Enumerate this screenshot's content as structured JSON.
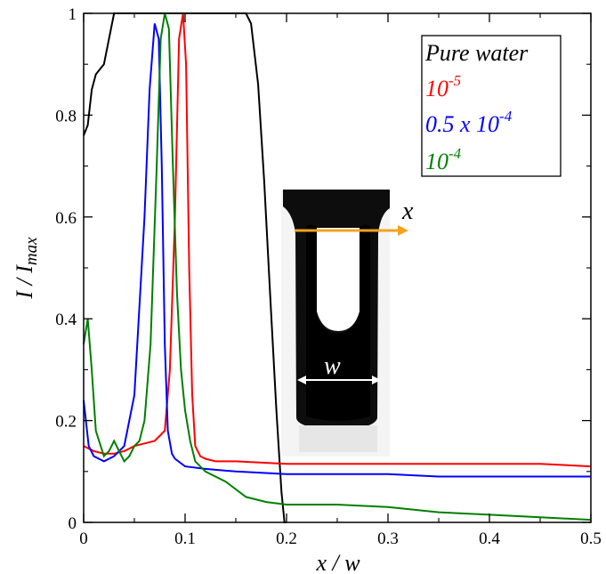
{
  "chart_data": {
    "type": "line",
    "xlabel": "x / w",
    "ylabel_main": "I / I",
    "ylabel_sub": "max",
    "xlim": [
      0,
      0.5
    ],
    "ylim": [
      0,
      1
    ],
    "x_ticks": [
      "0",
      "0.1",
      "0.2",
      "0.3",
      "0.4",
      "0.5"
    ],
    "y_ticks": [
      "0",
      "0.2",
      "0.4",
      "0.6",
      "0.8",
      "1"
    ],
    "grid": false,
    "legend_position": "top-right",
    "legend": [
      {
        "text": "Pure water",
        "base": "Pure water",
        "exp": "",
        "color": "#000000"
      },
      {
        "text": "10-5",
        "base": "10",
        "exp": "-5",
        "color": "#ff0000"
      },
      {
        "text": "0.5 x 10-4",
        "base": "0.5 x 10",
        "exp": "-4",
        "color": "#0000ff"
      },
      {
        "text": "10-4",
        "base": "10",
        "exp": "-4",
        "color": "#008000"
      }
    ],
    "series": [
      {
        "name": "Pure water",
        "color": "#000000",
        "x": [
          0,
          0.004,
          0.008,
          0.012,
          0.016,
          0.02,
          0.025,
          0.03,
          0.035,
          0.16,
          0.165,
          0.172,
          0.178,
          0.184,
          0.19,
          0.195,
          0.198,
          0.2
        ],
        "y": [
          0.76,
          0.78,
          0.85,
          0.88,
          0.89,
          0.9,
          0.95,
          1.0,
          1.0,
          1.0,
          0.98,
          0.86,
          0.67,
          0.44,
          0.22,
          0.06,
          0.0,
          0.0
        ]
      },
      {
        "name": "10-5",
        "color": "#ff0000",
        "x": [
          0,
          0.01,
          0.02,
          0.03,
          0.04,
          0.05,
          0.06,
          0.07,
          0.08,
          0.085,
          0.09,
          0.094,
          0.098,
          0.101,
          0.104,
          0.107,
          0.11,
          0.115,
          0.12,
          0.13,
          0.15,
          0.2,
          0.25,
          0.3,
          0.35,
          0.4,
          0.45,
          0.5
        ],
        "y": [
          0.15,
          0.14,
          0.135,
          0.135,
          0.14,
          0.15,
          0.155,
          0.16,
          0.18,
          0.3,
          0.6,
          0.95,
          1.0,
          0.9,
          0.5,
          0.25,
          0.15,
          0.13,
          0.125,
          0.12,
          0.12,
          0.115,
          0.115,
          0.115,
          0.115,
          0.115,
          0.115,
          0.11
        ]
      },
      {
        "name": "0.5 x 10-4",
        "color": "#0000ff",
        "x": [
          0,
          0.005,
          0.01,
          0.02,
          0.03,
          0.04,
          0.05,
          0.06,
          0.065,
          0.07,
          0.074,
          0.077,
          0.08,
          0.083,
          0.087,
          0.09,
          0.1,
          0.12,
          0.15,
          0.2,
          0.25,
          0.3,
          0.35,
          0.4,
          0.45,
          0.5
        ],
        "y": [
          0.24,
          0.15,
          0.13,
          0.12,
          0.13,
          0.15,
          0.25,
          0.6,
          0.85,
          0.98,
          0.95,
          0.7,
          0.35,
          0.18,
          0.135,
          0.125,
          0.11,
          0.105,
          0.1,
          0.095,
          0.095,
          0.095,
          0.09,
          0.09,
          0.09,
          0.09
        ]
      },
      {
        "name": "10-4",
        "color": "#008000",
        "x": [
          0,
          0.004,
          0.008,
          0.012,
          0.02,
          0.025,
          0.03,
          0.035,
          0.04,
          0.045,
          0.05,
          0.055,
          0.06,
          0.066,
          0.072,
          0.076,
          0.08,
          0.084,
          0.088,
          0.092,
          0.096,
          0.1,
          0.105,
          0.11,
          0.12,
          0.14,
          0.16,
          0.18,
          0.2,
          0.25,
          0.3,
          0.35,
          0.4,
          0.45,
          0.5
        ],
        "y": [
          0.35,
          0.4,
          0.3,
          0.18,
          0.13,
          0.14,
          0.16,
          0.14,
          0.12,
          0.13,
          0.15,
          0.16,
          0.2,
          0.35,
          0.7,
          0.95,
          1.0,
          0.97,
          0.7,
          0.45,
          0.3,
          0.22,
          0.16,
          0.12,
          0.1,
          0.08,
          0.05,
          0.04,
          0.035,
          0.035,
          0.03,
          0.02,
          0.015,
          0.01,
          0.005
        ]
      }
    ]
  },
  "inset": {
    "x_label": "x",
    "w_label": "w",
    "arrow_color": "#f5a21e"
  }
}
